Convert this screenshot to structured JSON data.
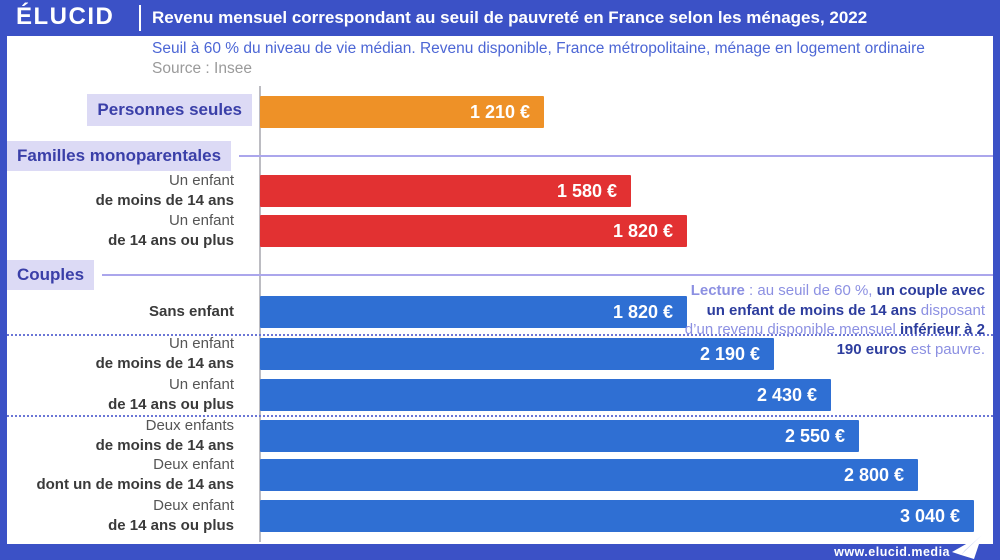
{
  "header": {
    "logo": "ÉLUCID",
    "title": "Revenu mensuel correspondant au seuil de pauvreté en France selon les ménages, 2022"
  },
  "subtitle": {
    "line1": "Seuil à 60 % du niveau de vie médian. Revenu disponible, France métropolitaine, ménage en logement ordinaire",
    "source": "Source : Insee"
  },
  "colors": {
    "frame_blue": "#3b51c6",
    "bar_blue": "#2f6fd3",
    "bar_red": "#e23132",
    "bar_orange": "#ee9127",
    "label_box_bg": "#dcdaf5",
    "label_box_text": "#3a3fa8"
  },
  "chart_data": {
    "type": "bar",
    "orientation": "horizontal",
    "title": "Revenu mensuel correspondant au seuil de pauvreté en France selon les ménages, 2022",
    "value_unit": "€ par mois",
    "value_axis_max": 3040,
    "grid": false,
    "groups": [
      {
        "group": "Personnes seules",
        "color": "#ee9127",
        "bars": [
          {
            "boxed": true,
            "label_line1": "Personnes seules",
            "label_line2": "",
            "value": 1210,
            "display": "1 210 €"
          }
        ]
      },
      {
        "group": "Familles monoparentales",
        "color": "#e23132",
        "bars": [
          {
            "label_line1": "Un enfant",
            "label_line2": "de moins de 14 ans",
            "value": 1580,
            "display": "1 580 €"
          },
          {
            "label_line1": "Un enfant",
            "label_line2": "de 14 ans ou plus",
            "value": 1820,
            "display": "1 820 €"
          }
        ]
      },
      {
        "group": "Couples",
        "color": "#2f6fd3",
        "bars": [
          {
            "label_line1": "",
            "label_line2": "Sans enfant",
            "value": 1820,
            "display": "1 820 €"
          },
          {
            "label_line1": "Un enfant",
            "label_line2": "de moins de 14 ans",
            "value": 2190,
            "display": "2 190 €"
          },
          {
            "label_line1": "Un enfant",
            "label_line2": "de 14 ans ou plus",
            "value": 2430,
            "display": "2 430 €"
          },
          {
            "label_line1": "Deux enfants",
            "label_line2": "de moins de 14 ans",
            "value": 2550,
            "display": "2 550 €"
          },
          {
            "label_line1": "Deux enfant",
            "label_line2": "dont un de moins de 14 ans",
            "value": 2800,
            "display": "2 800 €"
          },
          {
            "label_line1": "Deux enfant",
            "label_line2": "de 14 ans ou plus",
            "value": 3040,
            "display": "3 040 €"
          }
        ]
      }
    ]
  },
  "annotation": {
    "segments": [
      {
        "t": "Lecture",
        "s": "muted-bold"
      },
      {
        "t": " : au seuil de 60 %, ",
        "s": "muted"
      },
      {
        "t": "un couple avec un enfant de moins de 14 ans",
        "s": "strong"
      },
      {
        "t": " disposant d’un revenu disponible mensuel ",
        "s": "muted"
      },
      {
        "t": "inférieur à 2 190 euros",
        "s": "strong"
      },
      {
        "t": " est pauvre.",
        "s": "muted"
      }
    ]
  },
  "footer": {
    "url": "www.elucid.media"
  }
}
